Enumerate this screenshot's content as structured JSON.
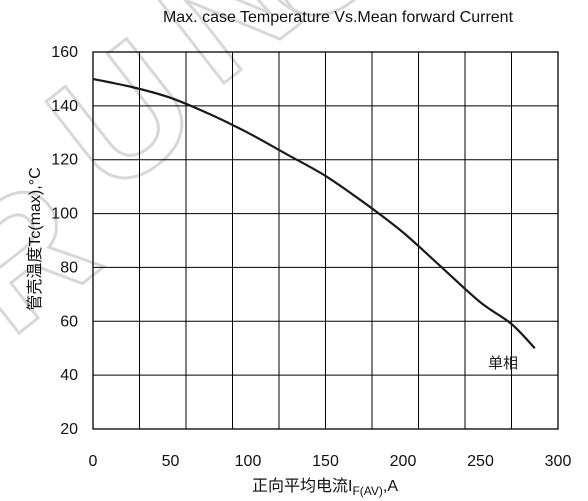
{
  "chart_data": {
    "type": "line",
    "title": "Max. case Temperature Vs.Mean forward Current",
    "ylabel": "管壳温度Tc(max),°C",
    "xlabel": {
      "prefix": "正向平均电流",
      "symbol": "I",
      "subscript": "F(AV)",
      "suffix": ",A"
    },
    "xlim": [
      0,
      300
    ],
    "ylim": [
      20,
      160
    ],
    "x_ticks": [
      0,
      50,
      100,
      150,
      200,
      250,
      300
    ],
    "y_ticks": [
      20,
      40,
      60,
      80,
      100,
      120,
      140,
      160
    ],
    "grid": true,
    "grid_x_step": 30,
    "grid_y_step": 20,
    "annotation": "单相",
    "watermark": "RUNO",
    "series": [
      {
        "x": [
          0,
          25,
          50,
          75,
          100,
          125,
          150,
          175,
          200,
          225,
          250,
          270,
          285
        ],
        "y": [
          150,
          147,
          143,
          137,
          130,
          122,
          114,
          104,
          93,
          80,
          67,
          59,
          50
        ]
      }
    ]
  }
}
